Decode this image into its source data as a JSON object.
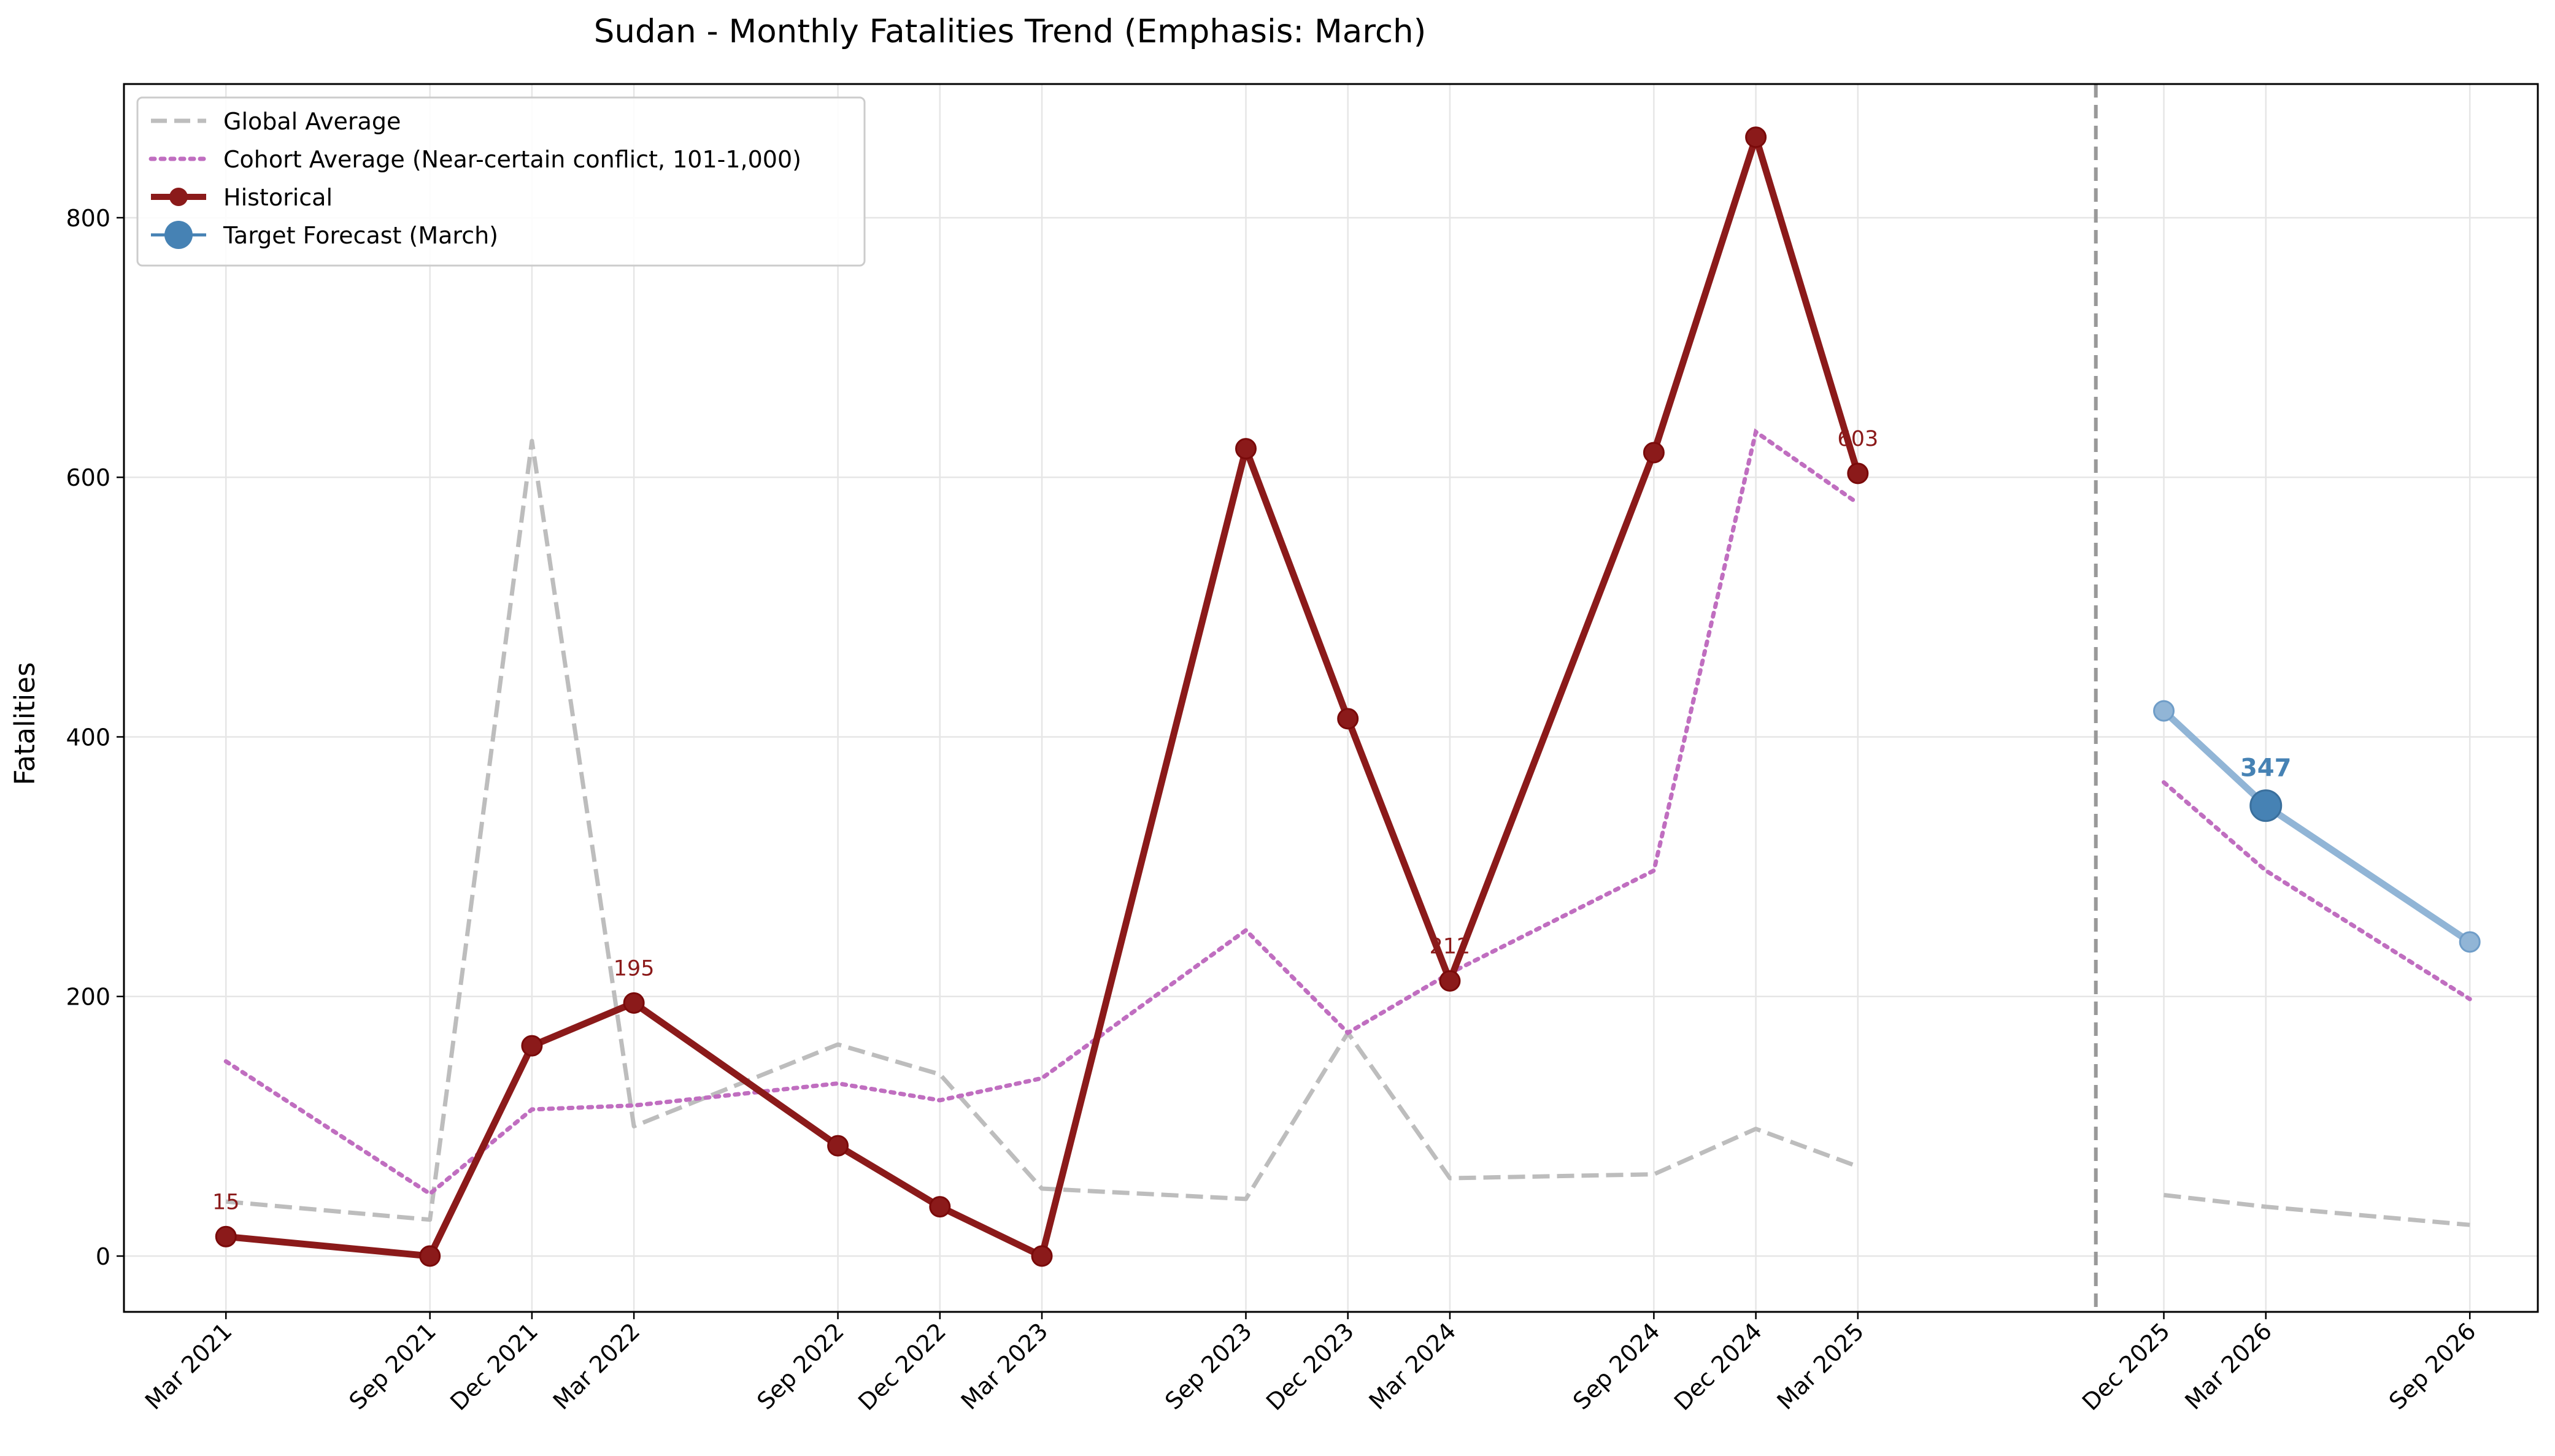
{
  "chart_data": {
    "type": "line",
    "title": "Sudan - Monthly Fatalities Trend (Emphasis: March)",
    "xlabel": "",
    "ylabel": "Fatalities",
    "xlim": [
      "2020-12",
      "2026-11"
    ],
    "ylim": [
      -43,
      903
    ],
    "y_ticks": [
      0,
      200,
      400,
      600,
      800
    ],
    "x_ticks": [
      {
        "date": "2021-03",
        "label": "Mar 2021"
      },
      {
        "date": "2021-09",
        "label": "Sep 2021"
      },
      {
        "date": "2021-12",
        "label": "Dec 2021"
      },
      {
        "date": "2022-03",
        "label": "Mar 2022"
      },
      {
        "date": "2022-09",
        "label": "Sep 2022"
      },
      {
        "date": "2022-12",
        "label": "Dec 2022"
      },
      {
        "date": "2023-03",
        "label": "Mar 2023"
      },
      {
        "date": "2023-09",
        "label": "Sep 2023"
      },
      {
        "date": "2023-12",
        "label": "Dec 2023"
      },
      {
        "date": "2024-03",
        "label": "Mar 2024"
      },
      {
        "date": "2024-09",
        "label": "Sep 2024"
      },
      {
        "date": "2024-12",
        "label": "Dec 2024"
      },
      {
        "date": "2025-03",
        "label": "Mar 2025"
      },
      {
        "date": "2025-12",
        "label": "Dec 2025"
      },
      {
        "date": "2026-03",
        "label": "Mar 2026"
      },
      {
        "date": "2026-09",
        "label": "Sep 2026"
      }
    ],
    "grid": true,
    "legend_position": "top-left",
    "forecast_divider_x": "2025-10",
    "series": [
      {
        "name": "Global Average",
        "style": "dashed",
        "color": "#bdbdbd",
        "segments": [
          {
            "x": [
              "2021-03",
              "2021-09",
              "2021-12",
              "2022-03",
              "2022-09",
              "2022-12",
              "2023-03",
              "2023-09",
              "2023-12",
              "2024-03",
              "2024-09",
              "2024-12",
              "2025-03"
            ],
            "y": [
              42,
              28,
              628,
              100,
              163,
              140,
              52,
              44,
              172,
              60,
              63,
              98,
              69
            ]
          },
          {
            "x": [
              "2025-12",
              "2026-03",
              "2026-09"
            ],
            "y": [
              47,
              38,
              24
            ]
          }
        ]
      },
      {
        "name": "Cohort Average (Near-certain conflict, 101-1,000)",
        "style": "dotted",
        "color": "#c06ec0",
        "segments": [
          {
            "x": [
              "2021-03",
              "2021-09",
              "2021-12",
              "2022-03",
              "2022-09",
              "2022-12",
              "2023-03",
              "2023-09",
              "2023-12",
              "2024-03",
              "2024-09",
              "2024-12",
              "2025-03"
            ],
            "y": [
              150,
              48,
              113,
              116,
              133,
              120,
              137,
              251,
              172,
              218,
              297,
              635,
              580
            ]
          },
          {
            "x": [
              "2025-12",
              "2026-03",
              "2026-09"
            ],
            "y": [
              365,
              297,
              198
            ]
          }
        ]
      },
      {
        "name": "Historical",
        "style": "solid-markers",
        "color": "#8b1a1a",
        "x": [
          "2021-03",
          "2021-09",
          "2021-12",
          "2022-03",
          "2022-09",
          "2022-12",
          "2023-03",
          "2023-09",
          "2023-12",
          "2024-03",
          "2024-09",
          "2024-12",
          "2025-03"
        ],
        "y": [
          15,
          0,
          162,
          195,
          85,
          38,
          0,
          622,
          414,
          212,
          619,
          862,
          603
        ],
        "labeled_points": [
          {
            "x": "2021-03",
            "y": 15,
            "label": "15"
          },
          {
            "x": "2022-03",
            "y": 195,
            "label": "195"
          },
          {
            "x": "2024-03",
            "y": 212,
            "label": "212"
          },
          {
            "x": "2025-03",
            "y": 603,
            "label": "603"
          }
        ]
      },
      {
        "name": "Forecast path",
        "legend": false,
        "style": "solid-faded",
        "color": "#91b5d6",
        "x": [
          "2025-12",
          "2026-03",
          "2026-09"
        ],
        "y": [
          420,
          347,
          242
        ]
      },
      {
        "name": "Target Forecast (March)",
        "style": "big-marker",
        "color": "#4682b4",
        "x": [
          "2026-03"
        ],
        "y": [
          347
        ],
        "labeled_points": [
          {
            "x": "2026-03",
            "y": 347,
            "label": "347"
          }
        ]
      }
    ]
  }
}
